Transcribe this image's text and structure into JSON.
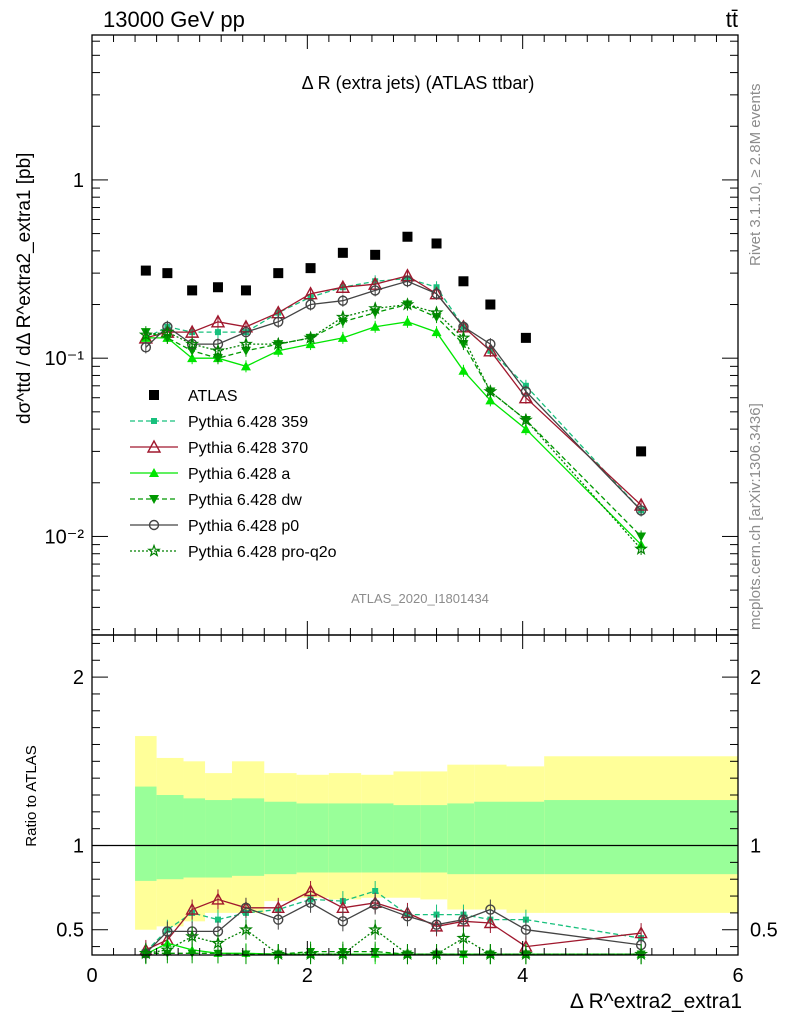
{
  "header": {
    "energy": "13000 GeV pp",
    "process": "tt̄",
    "plot_title": "Δ R (extra jets) (ATLAS ttbar)",
    "analysis_id": "ATLAS_2020_I1801434",
    "side_label_top": "Rivet 3.1.10, ≥ 2.8M events",
    "side_label_bottom": "mcplots.cern.ch [arXiv:1306.3436]"
  },
  "axes": {
    "y_main_label": "dσ^ttd / dΔ R^extra2_extra1 [pb]",
    "y_ratio_label": "Ratio to ATLAS",
    "x_label": "Δ R^extra2_extra1",
    "x_ticks": [
      "0",
      "2",
      "4",
      "6"
    ],
    "y_main_ticks": [
      "10⁻²",
      "10⁻¹",
      "1"
    ],
    "y_ratio_ticks": [
      "0.5",
      "1",
      "2"
    ]
  },
  "chart_data": {
    "type": "scatter",
    "x_range": [
      0,
      6
    ],
    "y_range_main": [
      0.0028,
      6.5
    ],
    "y_scale_main": "log",
    "y_range_ratio": [
      0.35,
      2.25
    ],
    "x": [
      0.5,
      0.7,
      0.93,
      1.17,
      1.43,
      1.73,
      2.03,
      2.33,
      2.63,
      2.93,
      3.2,
      3.45,
      3.7,
      4.03,
      5.1
    ],
    "data": {
      "name": "ATLAS",
      "values": [
        0.31,
        0.3,
        0.24,
        0.25,
        0.24,
        0.3,
        0.32,
        0.39,
        0.38,
        0.48,
        0.44,
        0.27,
        0.2,
        0.13,
        0.03
      ]
    },
    "band_edges": [
      0.4,
      0.6,
      0.85,
      1.05,
      1.3,
      1.6,
      1.9,
      2.2,
      2.5,
      2.8,
      3.05,
      3.3,
      3.55,
      3.85,
      4.2,
      6.0
    ],
    "band_inner": [
      [
        0.79,
        1.35
      ],
      [
        0.8,
        1.3
      ],
      [
        0.81,
        1.28
      ],
      [
        0.81,
        1.27
      ],
      [
        0.82,
        1.28
      ],
      [
        0.83,
        1.26
      ],
      [
        0.84,
        1.25
      ],
      [
        0.84,
        1.25
      ],
      [
        0.84,
        1.25
      ],
      [
        0.84,
        1.24
      ],
      [
        0.84,
        1.24
      ],
      [
        0.83,
        1.25
      ],
      [
        0.83,
        1.26
      ],
      [
        0.83,
        1.26
      ],
      [
        0.83,
        1.27
      ]
    ],
    "band_outer": [
      [
        0.5,
        1.65
      ],
      [
        0.52,
        1.52
      ],
      [
        0.55,
        1.5
      ],
      [
        0.6,
        1.43
      ],
      [
        0.6,
        1.5
      ],
      [
        0.67,
        1.43
      ],
      [
        0.69,
        1.42
      ],
      [
        0.68,
        1.43
      ],
      [
        0.69,
        1.42
      ],
      [
        0.69,
        1.44
      ],
      [
        0.68,
        1.44
      ],
      [
        0.62,
        1.48
      ],
      [
        0.62,
        1.48
      ],
      [
        0.6,
        1.47
      ],
      [
        0.6,
        1.53
      ]
    ],
    "series": [
      {
        "name": "Pythia 6.428 359",
        "color": "#18c07d",
        "dash": "5,3",
        "marker": "square",
        "values": [
          0.13,
          0.15,
          0.14,
          0.14,
          0.14,
          0.18,
          0.22,
          0.25,
          0.27,
          0.28,
          0.25,
          0.15,
          0.11,
          0.07,
          0.014
        ],
        "ratio": [
          0.37,
          0.5,
          0.6,
          0.56,
          0.6,
          0.62,
          0.68,
          0.67,
          0.73,
          0.59,
          0.59,
          0.59,
          0.56,
          0.56,
          0.45
        ]
      },
      {
        "name": "Pythia 6.428 370",
        "color": "#a0182e",
        "dash": "",
        "marker": "triangle-open",
        "values": [
          0.13,
          0.14,
          0.14,
          0.16,
          0.15,
          0.18,
          0.23,
          0.25,
          0.26,
          0.29,
          0.23,
          0.15,
          0.11,
          0.06,
          0.015
        ],
        "ratio": [
          0.38,
          0.44,
          0.62,
          0.68,
          0.63,
          0.63,
          0.73,
          0.63,
          0.66,
          0.6,
          0.52,
          0.55,
          0.54,
          0.4,
          0.48
        ]
      },
      {
        "name": "Pythia 6.428 a",
        "color": "#00e600",
        "dash": "",
        "marker": "triangle",
        "values": [
          0.13,
          0.13,
          0.1,
          0.1,
          0.09,
          0.11,
          0.12,
          0.13,
          0.15,
          0.16,
          0.14,
          0.085,
          0.058,
          0.04,
          0.009
        ],
        "ratio": [
          0.35,
          0.42,
          0.38,
          0.36,
          0.36,
          0.3,
          0.3,
          0.3,
          0.3,
          0.3,
          0.3,
          0.3,
          0.3,
          0.3,
          0.3
        ]
      },
      {
        "name": "Pythia 6.428 dw",
        "color": "#009900",
        "dash": "5,3",
        "marker": "triangle-down",
        "values": [
          0.14,
          0.13,
          0.11,
          0.1,
          0.11,
          0.12,
          0.13,
          0.16,
          0.18,
          0.2,
          0.17,
          0.12,
          0.065,
          0.045,
          0.01
        ],
        "ratio": [
          0.36,
          0.36,
          0.36,
          0.36,
          0.34,
          0.34,
          0.37,
          0.37,
          0.37,
          0.35,
          0.32,
          0.32,
          0.32,
          0.32,
          0.32
        ]
      },
      {
        "name": "Pythia 6.428 p0",
        "color": "#444444",
        "dash": "",
        "marker": "circle-open",
        "values": [
          0.115,
          0.15,
          0.12,
          0.12,
          0.14,
          0.16,
          0.2,
          0.21,
          0.24,
          0.27,
          0.23,
          0.15,
          0.12,
          0.065,
          0.014
        ],
        "ratio": [
          0.36,
          0.49,
          0.49,
          0.49,
          0.63,
          0.56,
          0.66,
          0.55,
          0.65,
          0.58,
          0.53,
          0.56,
          0.62,
          0.5,
          0.41
        ]
      },
      {
        "name": "Pythia 6.428 pro-q2o",
        "color": "#008000",
        "dash": "2,2",
        "marker": "star",
        "values": [
          0.135,
          0.14,
          0.12,
          0.11,
          0.12,
          0.12,
          0.13,
          0.17,
          0.19,
          0.2,
          0.18,
          0.13,
          0.065,
          0.045,
          0.0085
        ],
        "ratio": [
          0.36,
          0.38,
          0.46,
          0.42,
          0.5,
          0.34,
          0.34,
          0.34,
          0.5,
          0.34,
          0.34,
          0.45,
          0.3,
          0.3,
          0.3
        ]
      }
    ]
  }
}
